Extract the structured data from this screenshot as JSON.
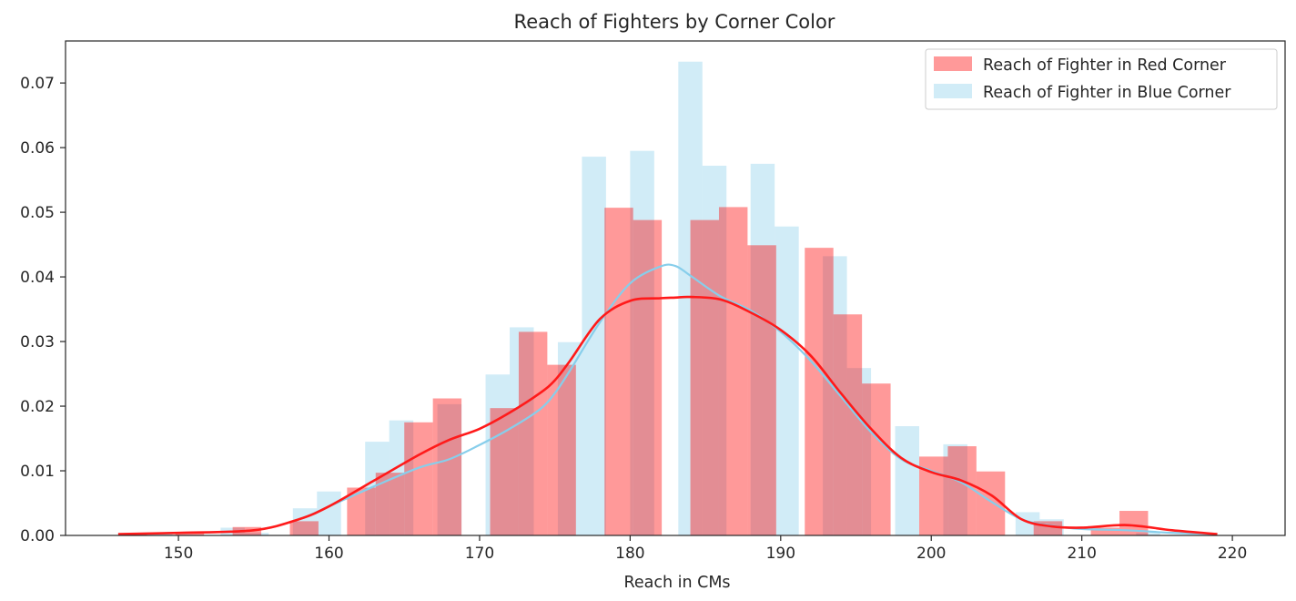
{
  "chart_data": {
    "type": "bar",
    "title": "Reach of Fighters by Corner Color",
    "xlabel": "Reach in CMs",
    "ylabel": "",
    "xlim": [
      142.5,
      223.5
    ],
    "ylim": [
      0,
      0.0765
    ],
    "xticks": [
      150,
      160,
      170,
      180,
      190,
      200,
      210,
      220
    ],
    "yticks": [
      0.0,
      0.01,
      0.02,
      0.03,
      0.04,
      0.05,
      0.06,
      0.07
    ],
    "ytick_labels": [
      "0.00",
      "0.01",
      "0.02",
      "0.03",
      "0.04",
      "0.05",
      "0.06",
      "0.07"
    ],
    "grid": false,
    "legend_position": "top-right",
    "series": [
      {
        "name": "Reach of Fighter in Blue Corner",
        "color": "#87ceeb",
        "kind": "histogram",
        "bins": [
          [
            146.5,
            148.1,
            0.0
          ],
          [
            148.1,
            149.6,
            0.0003
          ],
          [
            149.6,
            151.2,
            0.0
          ],
          [
            151.2,
            152.8,
            0.0
          ],
          [
            152.8,
            154.4,
            0.0012
          ],
          [
            154.4,
            156.0,
            0.0004
          ],
          [
            156.0,
            157.6,
            0.0
          ],
          [
            157.6,
            159.2,
            0.0042
          ],
          [
            159.2,
            160.8,
            0.0068
          ],
          [
            160.8,
            162.4,
            0.0
          ],
          [
            162.4,
            164.0,
            0.0145
          ],
          [
            164.0,
            165.6,
            0.0178
          ],
          [
            165.6,
            167.2,
            0.0
          ],
          [
            167.2,
            168.8,
            0.0203
          ],
          [
            168.8,
            170.4,
            0.0
          ],
          [
            170.4,
            172.0,
            0.0249
          ],
          [
            172.0,
            173.6,
            0.0322
          ],
          [
            173.6,
            175.2,
            0.0
          ],
          [
            175.2,
            176.8,
            0.0299
          ],
          [
            176.8,
            178.4,
            0.0586
          ],
          [
            178.4,
            180.0,
            0.0
          ],
          [
            180.0,
            181.6,
            0.0595
          ],
          [
            181.6,
            183.2,
            0.0
          ],
          [
            183.2,
            184.8,
            0.0733
          ],
          [
            184.8,
            186.4,
            0.0572
          ],
          [
            186.4,
            188.0,
            0.0
          ],
          [
            188.0,
            189.6,
            0.0575
          ],
          [
            189.6,
            191.2,
            0.0478
          ],
          [
            191.2,
            192.8,
            0.0
          ],
          [
            192.8,
            194.4,
            0.0432
          ],
          [
            194.4,
            196.0,
            0.0259
          ],
          [
            196.0,
            197.6,
            0.0
          ],
          [
            197.6,
            199.2,
            0.0169
          ],
          [
            199.2,
            200.8,
            0.0
          ],
          [
            200.8,
            202.4,
            0.0141
          ],
          [
            202.4,
            204.0,
            0.0
          ],
          [
            204.0,
            205.6,
            0.0
          ],
          [
            205.6,
            207.2,
            0.0036
          ],
          [
            207.2,
            208.8,
            0.0025
          ],
          [
            208.8,
            210.4,
            0.0
          ],
          [
            210.4,
            212.0,
            0.0
          ],
          [
            212.0,
            213.6,
            0.0
          ],
          [
            213.6,
            215.2,
            0.0004
          ]
        ],
        "kde_x": [
          146,
          150,
          155,
          158,
          160,
          163,
          166,
          168,
          170,
          172,
          174,
          175,
          176,
          178,
          180,
          182,
          183,
          184,
          186,
          188,
          190,
          192,
          194,
          196,
          198,
          200,
          202,
          204,
          206,
          208,
          210,
          213,
          216,
          219
        ],
        "kde_y": [
          0.0002,
          0.0004,
          0.0008,
          0.0025,
          0.0045,
          0.0076,
          0.0105,
          0.0118,
          0.014,
          0.0165,
          0.0195,
          0.022,
          0.0255,
          0.033,
          0.039,
          0.0416,
          0.0417,
          0.0402,
          0.037,
          0.0348,
          0.0315,
          0.027,
          0.0215,
          0.016,
          0.0118,
          0.01,
          0.0082,
          0.0052,
          0.0025,
          0.0015,
          0.001,
          0.0008,
          0.0004,
          0.0002
        ]
      },
      {
        "name": "Reach of Fighter in Red Corner",
        "color": "#ff0000",
        "kind": "histogram",
        "bins": [
          [
            146.0,
            147.9,
            0.0002
          ],
          [
            147.9,
            149.8,
            0.0
          ],
          [
            149.8,
            151.7,
            0.0004
          ],
          [
            151.7,
            153.6,
            0.0
          ],
          [
            153.6,
            155.5,
            0.0013
          ],
          [
            155.5,
            157.4,
            0.0
          ],
          [
            157.4,
            159.3,
            0.0022
          ],
          [
            159.3,
            161.2,
            0.0
          ],
          [
            161.2,
            163.1,
            0.0074
          ],
          [
            163.1,
            165.0,
            0.0097
          ],
          [
            165.0,
            166.9,
            0.0175
          ],
          [
            166.9,
            168.8,
            0.0212
          ],
          [
            168.8,
            170.7,
            0.0
          ],
          [
            170.7,
            172.6,
            0.0197
          ],
          [
            172.6,
            174.5,
            0.0315
          ],
          [
            174.5,
            176.4,
            0.0264
          ],
          [
            176.4,
            178.3,
            0.0
          ],
          [
            178.3,
            180.2,
            0.0507
          ],
          [
            180.2,
            182.1,
            0.0488
          ],
          [
            182.1,
            184.0,
            0.0
          ],
          [
            184.0,
            185.9,
            0.0488
          ],
          [
            185.9,
            187.8,
            0.0508
          ],
          [
            187.8,
            189.7,
            0.0449
          ],
          [
            189.7,
            191.6,
            0.0
          ],
          [
            191.6,
            193.5,
            0.0445
          ],
          [
            193.5,
            195.4,
            0.0342
          ],
          [
            195.4,
            197.3,
            0.0235
          ],
          [
            197.3,
            199.2,
            0.0
          ],
          [
            199.2,
            201.1,
            0.0122
          ],
          [
            201.1,
            203.0,
            0.0138
          ],
          [
            203.0,
            204.9,
            0.0099
          ],
          [
            204.9,
            206.8,
            0.0
          ],
          [
            206.8,
            208.7,
            0.0022
          ],
          [
            208.7,
            210.6,
            0.0
          ],
          [
            210.6,
            212.5,
            0.0012
          ],
          [
            212.5,
            214.4,
            0.0038
          ]
        ],
        "kde_x": [
          146,
          150,
          155,
          158,
          160,
          163,
          166,
          168,
          170,
          172,
          174,
          175,
          176,
          178,
          180,
          182,
          183,
          184,
          186,
          188,
          190,
          192,
          194,
          196,
          198,
          200,
          202,
          204,
          206,
          208,
          210,
          213,
          216,
          219
        ],
        "kde_y": [
          0.0002,
          0.0004,
          0.0008,
          0.0025,
          0.0045,
          0.0085,
          0.0125,
          0.0148,
          0.0165,
          0.019,
          0.022,
          0.024,
          0.027,
          0.0335,
          0.0363,
          0.0367,
          0.0368,
          0.0369,
          0.0365,
          0.0345,
          0.0318,
          0.0278,
          0.022,
          0.0165,
          0.012,
          0.0098,
          0.0085,
          0.0062,
          0.0025,
          0.0014,
          0.0012,
          0.0016,
          0.0008,
          0.0002
        ]
      }
    ],
    "legend_order": [
      "Reach of Fighter in Red Corner",
      "Reach of Fighter in Blue Corner"
    ]
  }
}
